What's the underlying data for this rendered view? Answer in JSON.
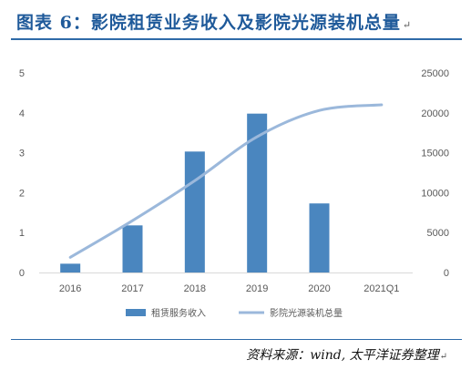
{
  "title": "图表 6：影院租赁业务收入及影院光源装机总量",
  "source": "资料来源：wind, 太平洋证券整理",
  "chart_data": {
    "type": "bar",
    "categories": [
      "2016",
      "2017",
      "2018",
      "2019",
      "2020",
      "2021Q1"
    ],
    "series": [
      {
        "name": "租赁服务收入",
        "type": "bar",
        "axis": "left",
        "color": "#4a86bf",
        "values": [
          0.22,
          1.18,
          3.03,
          3.98,
          1.73,
          null
        ]
      },
      {
        "name": "影院光源装机总量",
        "type": "line",
        "axis": "right",
        "color": "#9bb8db",
        "values": [
          1900,
          6500,
          11500,
          17000,
          20300,
          21000
        ]
      }
    ],
    "ylim": [
      0,
      5
    ],
    "yticks": [
      "0",
      "1",
      "2",
      "3",
      "4",
      "5"
    ],
    "y2lim": [
      0,
      25000
    ],
    "y2ticks": [
      "0",
      "5000",
      "10000",
      "15000",
      "20000",
      "25000"
    ],
    "grid": false,
    "legend": "bottom"
  }
}
